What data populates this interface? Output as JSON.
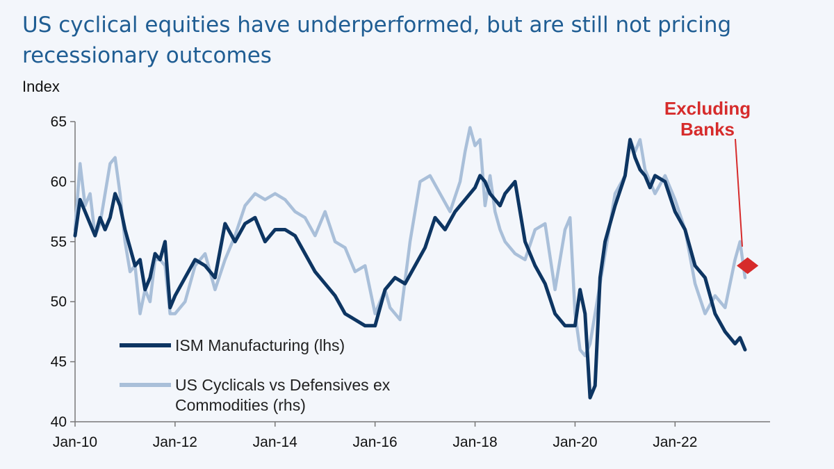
{
  "chart_data": {
    "type": "line",
    "title": "US cyclical equities have underperformed, but are still not pricing recessionary outcomes",
    "ylabel": "Index",
    "ylim": [
      40,
      65
    ],
    "yticks": [
      40,
      45,
      50,
      55,
      60,
      65
    ],
    "xlim": [
      2010.0,
      2023.9
    ],
    "xticks": [
      {
        "value": 2010.0,
        "label": "Jan-10"
      },
      {
        "value": 2012.0,
        "label": "Jan-12"
      },
      {
        "value": 2014.0,
        "label": "Jan-14"
      },
      {
        "value": 2016.0,
        "label": "Jan-16"
      },
      {
        "value": 2018.0,
        "label": "Jan-18"
      },
      {
        "value": 2020.0,
        "label": "Jan-20"
      },
      {
        "value": 2022.0,
        "label": "Jan-22"
      }
    ],
    "grid": false,
    "legend_position": "bottom-left",
    "series": [
      {
        "name": "US Cyclicals vs Defensives ex Commodities (rhs)",
        "color": "#a9bfd9",
        "x": [
          2010.0,
          2010.1,
          2010.2,
          2010.3,
          2010.4,
          2010.5,
          2010.6,
          2010.7,
          2010.8,
          2010.9,
          2011.0,
          2011.1,
          2011.2,
          2011.3,
          2011.4,
          2011.5,
          2011.6,
          2011.7,
          2011.8,
          2011.9,
          2012.0,
          2012.2,
          2012.4,
          2012.6,
          2012.8,
          2013.0,
          2013.2,
          2013.4,
          2013.6,
          2013.8,
          2014.0,
          2014.2,
          2014.4,
          2014.6,
          2014.8,
          2015.0,
          2015.2,
          2015.4,
          2015.6,
          2015.8,
          2016.0,
          2016.2,
          2016.3,
          2016.5,
          2016.7,
          2016.9,
          2017.1,
          2017.3,
          2017.5,
          2017.7,
          2017.8,
          2017.9,
          2018.0,
          2018.1,
          2018.2,
          2018.3,
          2018.4,
          2018.5,
          2018.6,
          2018.8,
          2019.0,
          2019.2,
          2019.4,
          2019.6,
          2019.8,
          2019.9,
          2020.0,
          2020.1,
          2020.2,
          2020.3,
          2020.4,
          2020.6,
          2020.8,
          2021.0,
          2021.1,
          2021.2,
          2021.3,
          2021.4,
          2021.5,
          2021.6,
          2021.8,
          2022.0,
          2022.2,
          2022.4,
          2022.6,
          2022.8,
          2023.0,
          2023.2,
          2023.3,
          2023.4
        ],
        "y": [
          56.0,
          61.5,
          58.0,
          59.0,
          55.5,
          56.5,
          59.0,
          61.5,
          62.0,
          59.0,
          55.0,
          52.5,
          53.0,
          49.0,
          51.0,
          50.0,
          53.5,
          53.5,
          53.0,
          49.0,
          49.0,
          50.0,
          53.0,
          54.0,
          51.0,
          53.5,
          55.5,
          58.0,
          59.0,
          58.5,
          59.0,
          58.5,
          57.5,
          57.0,
          55.5,
          57.5,
          55.0,
          54.5,
          52.5,
          53.0,
          49.0,
          51.0,
          49.5,
          48.5,
          55.0,
          60.0,
          60.5,
          59.0,
          57.5,
          60.0,
          62.5,
          64.5,
          63.0,
          63.5,
          58.0,
          60.5,
          57.5,
          56.0,
          55.0,
          54.0,
          53.5,
          56.0,
          56.5,
          51.0,
          56.0,
          57.0,
          49.0,
          46.0,
          45.5,
          46.5,
          49.0,
          54.0,
          59.0,
          60.5,
          63.5,
          62.5,
          63.5,
          61.0,
          60.0,
          59.0,
          60.5,
          58.5,
          56.0,
          51.5,
          49.0,
          50.5,
          49.5,
          53.5,
          55.0,
          52.0
        ]
      },
      {
        "name": "ISM Manufacturing (lhs)",
        "color": "#0d3562",
        "x": [
          2010.0,
          2010.1,
          2010.2,
          2010.3,
          2010.4,
          2010.5,
          2010.6,
          2010.7,
          2010.8,
          2010.9,
          2011.0,
          2011.1,
          2011.2,
          2011.3,
          2011.4,
          2011.5,
          2011.6,
          2011.7,
          2011.8,
          2011.9,
          2012.0,
          2012.2,
          2012.4,
          2012.6,
          2012.8,
          2013.0,
          2013.2,
          2013.4,
          2013.6,
          2013.8,
          2014.0,
          2014.2,
          2014.4,
          2014.6,
          2014.8,
          2015.0,
          2015.2,
          2015.4,
          2015.6,
          2015.8,
          2016.0,
          2016.2,
          2016.4,
          2016.6,
          2016.8,
          2017.0,
          2017.2,
          2017.4,
          2017.6,
          2017.8,
          2018.0,
          2018.1,
          2018.2,
          2018.3,
          2018.4,
          2018.5,
          2018.6,
          2018.8,
          2019.0,
          2019.2,
          2019.4,
          2019.6,
          2019.8,
          2020.0,
          2020.1,
          2020.2,
          2020.3,
          2020.4,
          2020.5,
          2020.6,
          2020.8,
          2021.0,
          2021.1,
          2021.2,
          2021.3,
          2021.4,
          2021.5,
          2021.6,
          2021.8,
          2022.0,
          2022.2,
          2022.4,
          2022.6,
          2022.8,
          2023.0,
          2023.2,
          2023.3,
          2023.4
        ],
        "y": [
          55.5,
          58.5,
          57.5,
          56.5,
          55.5,
          57.0,
          56.0,
          57.0,
          59.0,
          58.0,
          56.0,
          54.5,
          53.0,
          53.5,
          51.0,
          52.0,
          54.0,
          53.5,
          55.0,
          49.5,
          50.5,
          52.0,
          53.5,
          53.0,
          52.0,
          56.5,
          55.0,
          56.5,
          57.0,
          55.0,
          56.0,
          56.0,
          55.5,
          54.0,
          52.5,
          51.5,
          50.5,
          49.0,
          48.5,
          48.0,
          48.0,
          51.0,
          52.0,
          51.5,
          53.0,
          54.5,
          57.0,
          56.0,
          57.5,
          58.5,
          59.5,
          60.5,
          60.0,
          59.0,
          58.5,
          58.0,
          59.0,
          60.0,
          55.0,
          53.0,
          51.5,
          49.0,
          48.0,
          48.0,
          51.0,
          49.0,
          42.0,
          43.0,
          52.0,
          55.0,
          58.0,
          60.5,
          63.5,
          62.0,
          61.0,
          60.5,
          59.5,
          60.5,
          60.0,
          57.5,
          56.0,
          53.0,
          52.0,
          49.0,
          47.5,
          46.5,
          47.0,
          46.0
        ]
      }
    ],
    "marker": {
      "x": 2023.45,
      "y": 53.0,
      "color": "#d62b2b"
    },
    "annotation": {
      "lines": [
        "Excluding",
        "Banks"
      ],
      "color": "#d62b2b"
    }
  }
}
